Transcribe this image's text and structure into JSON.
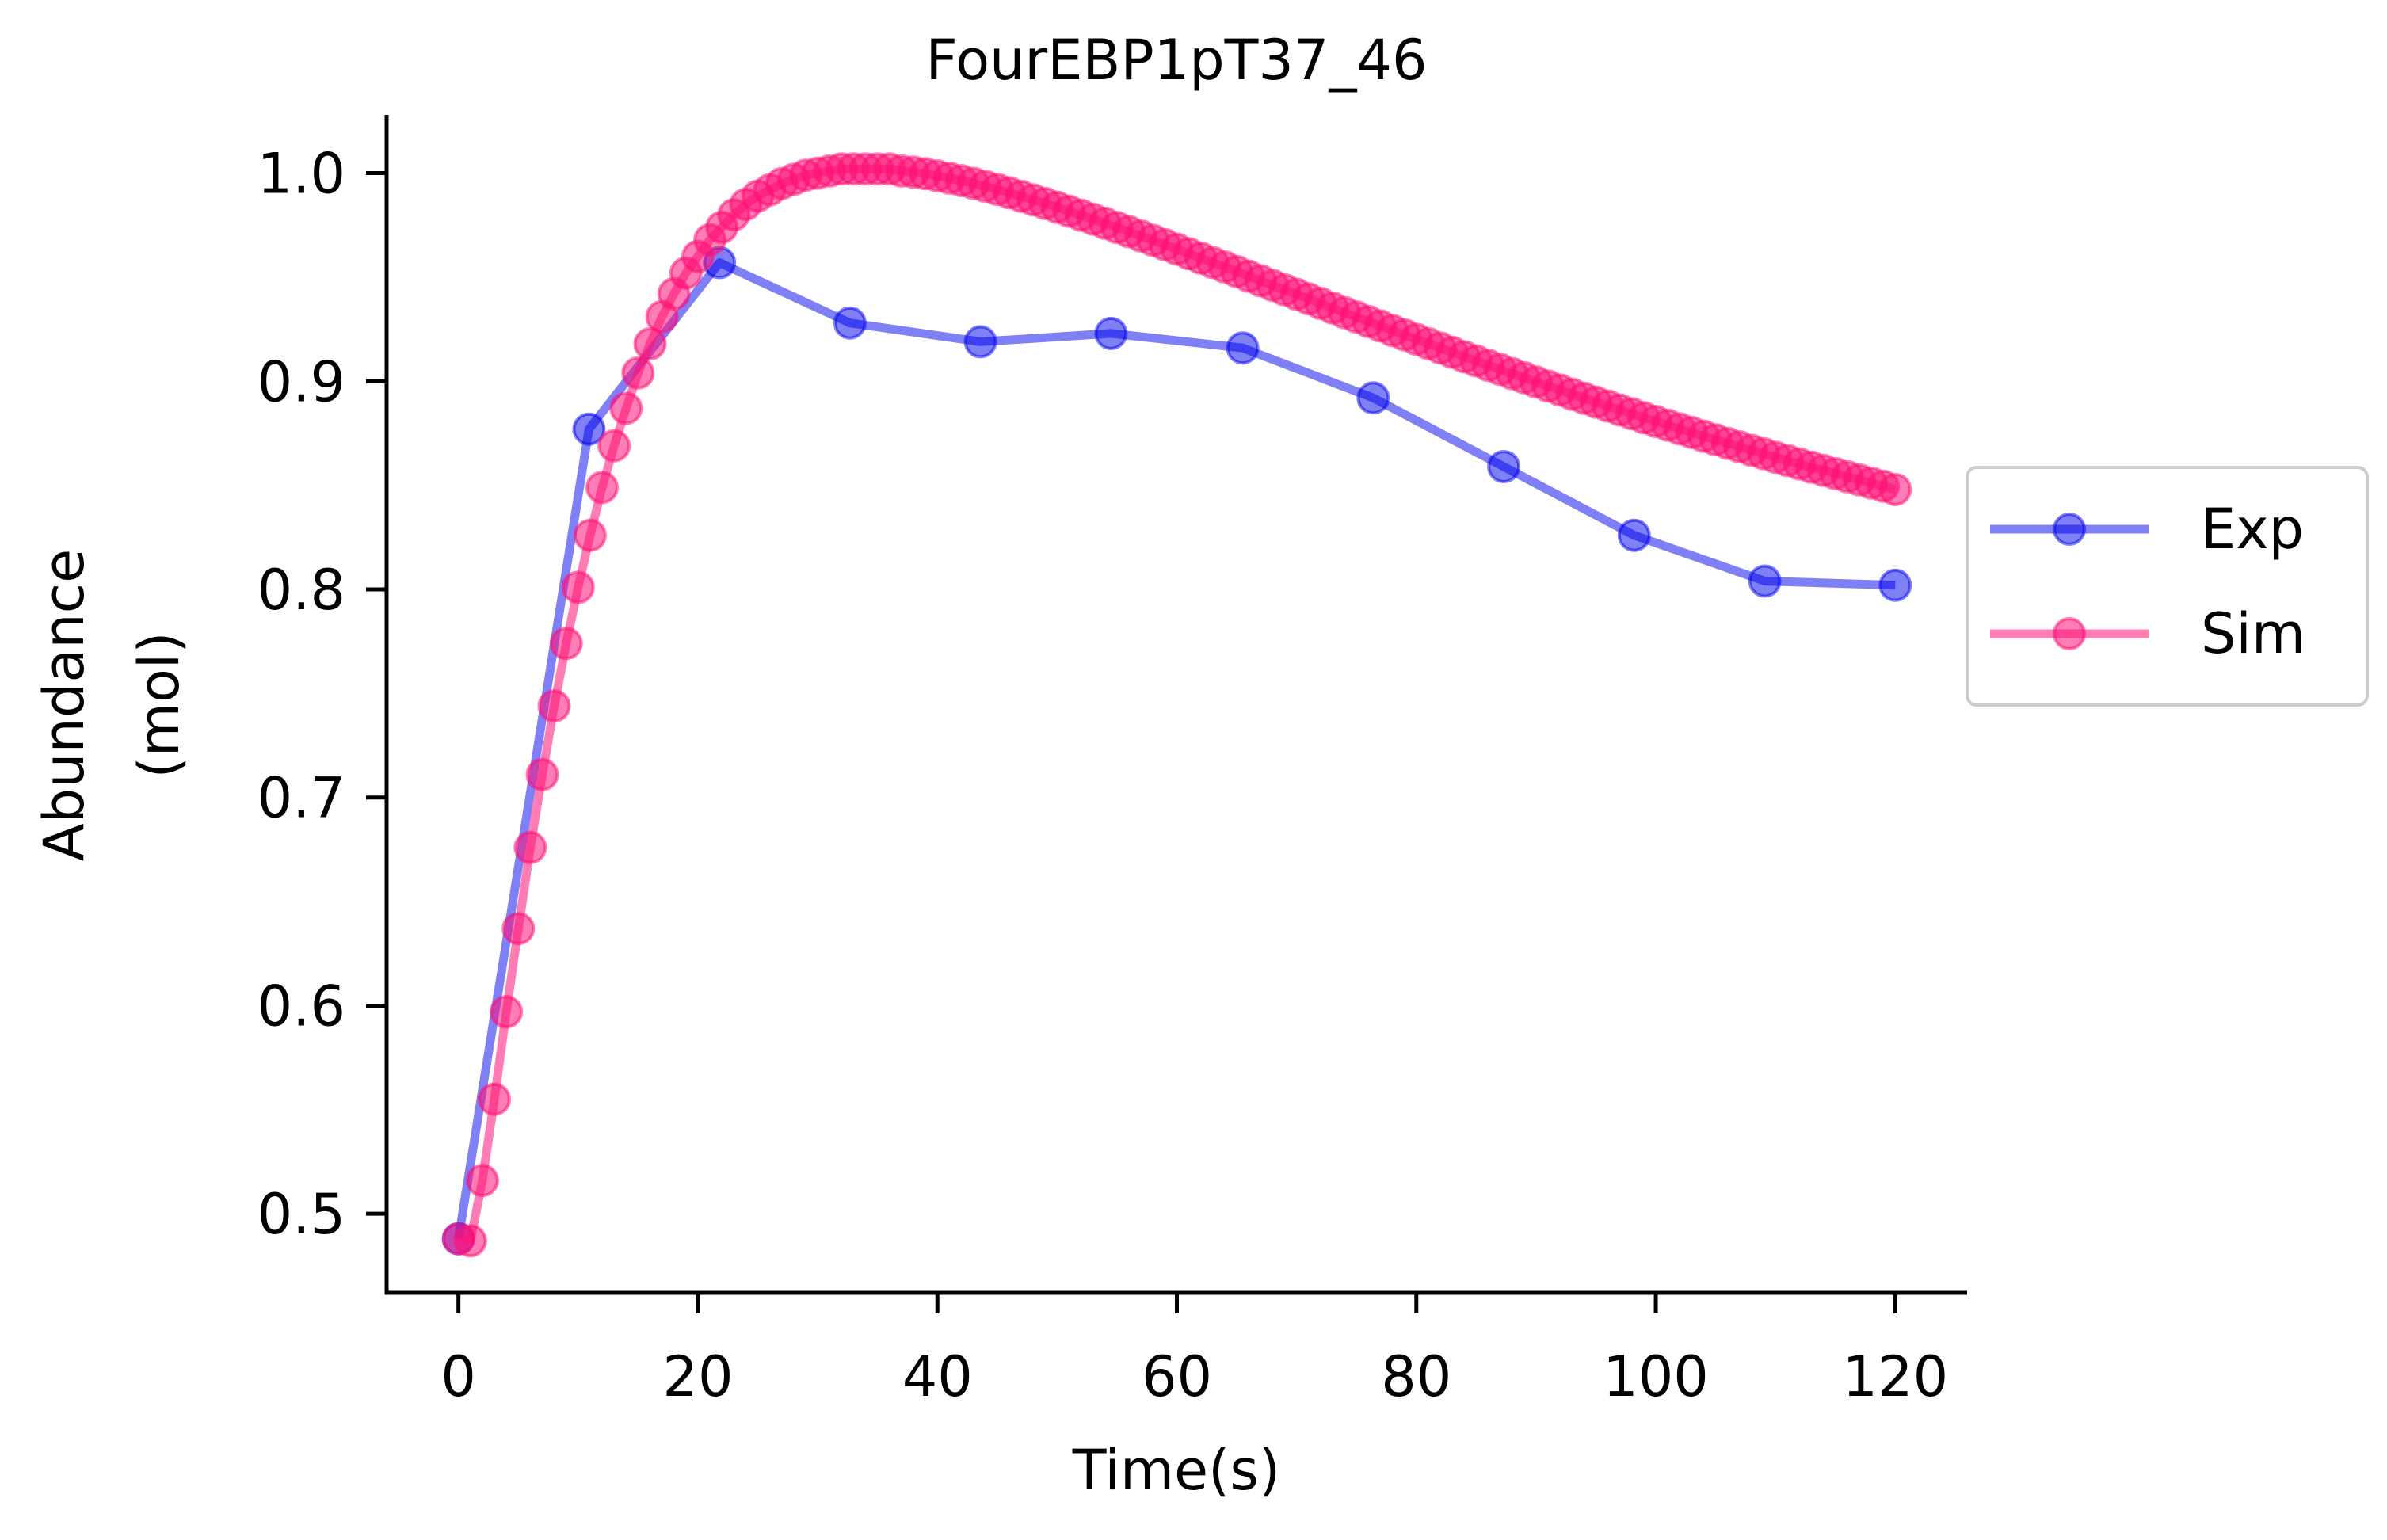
{
  "chart_data": {
    "type": "line",
    "title": "FourEBP1pT37_46",
    "xlabel": "Time(s)",
    "ylabel": [
      "Abundance",
      "(mol)"
    ],
    "xlim": [
      -6,
      126
    ],
    "ylim": [
      0.462,
      1.028
    ],
    "xticks": [
      0,
      20,
      40,
      60,
      80,
      100,
      120
    ],
    "yticks": [
      0.5,
      0.6,
      0.7,
      0.8,
      0.9,
      1.0
    ],
    "ytick_labels": [
      "0.5",
      "0.6",
      "0.7",
      "0.8",
      "0.9",
      "1.0"
    ],
    "grid": false,
    "legend_position": "outside-right",
    "series": [
      {
        "name": "Exp",
        "color": "#0000ee",
        "x": [
          0,
          10.9,
          21.8,
          32.7,
          43.6,
          54.5,
          65.5,
          76.4,
          87.3,
          98.2,
          109.1,
          120
        ],
        "y": [
          0.488,
          0.877,
          0.957,
          0.928,
          0.919,
          0.923,
          0.916,
          0.892,
          0.859,
          0.826,
          0.804,
          0.802
        ]
      },
      {
        "name": "Sim",
        "color": "#ff1177",
        "x_start": 0,
        "x_step": 1,
        "y": [
          0.488,
          0.487,
          0.516,
          0.555,
          0.597,
          0.637,
          0.676,
          0.711,
          0.744,
          0.774,
          0.801,
          0.826,
          0.849,
          0.869,
          0.887,
          0.904,
          0.918,
          0.931,
          0.942,
          0.952,
          0.96,
          0.968,
          0.974,
          0.98,
          0.985,
          0.989,
          0.992,
          0.995,
          0.997,
          0.999,
          1.0,
          1.001,
          1.002,
          1.002,
          1.002,
          1.002,
          1.002,
          1.001,
          1.0005,
          0.9997,
          0.9987,
          0.9976,
          0.9964,
          0.9951,
          0.9937,
          0.9922,
          0.9906,
          0.9889,
          0.9872,
          0.9854,
          0.9836,
          0.9817,
          0.9798,
          0.9779,
          0.9759,
          0.9739,
          0.9719,
          0.9698,
          0.9677,
          0.9656,
          0.9635,
          0.9613,
          0.9592,
          0.957,
          0.9549,
          0.9527,
          0.9505,
          0.9483,
          0.9461,
          0.9439,
          0.9418,
          0.9396,
          0.9374,
          0.9352,
          0.933,
          0.9309,
          0.9287,
          0.9266,
          0.9244,
          0.9223,
          0.9202,
          0.9181,
          0.916,
          0.9139,
          0.9118,
          0.9098,
          0.9077,
          0.9057,
          0.9037,
          0.9017,
          0.8997,
          0.8977,
          0.8958,
          0.8938,
          0.8919,
          0.89,
          0.8881,
          0.8862,
          0.8844,
          0.8825,
          0.8807,
          0.8789,
          0.8771,
          0.8754,
          0.8736,
          0.8719,
          0.8702,
          0.8685,
          0.8668,
          0.8652,
          0.8635,
          0.8619,
          0.8603,
          0.8587,
          0.8572,
          0.8556,
          0.8541,
          0.8526,
          0.8511,
          0.8496,
          0.848
        ]
      }
    ]
  }
}
